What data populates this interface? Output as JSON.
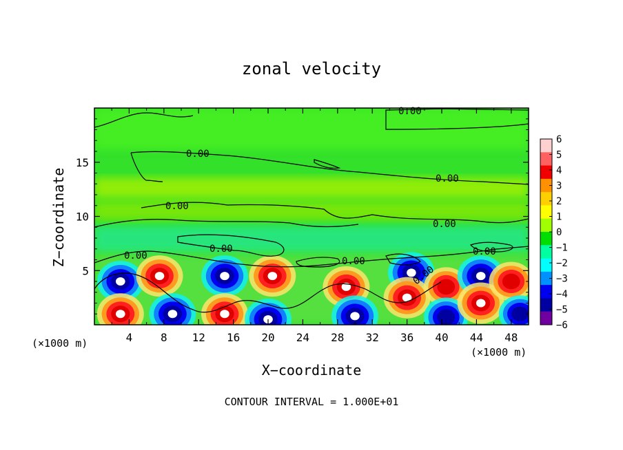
{
  "chart_data": {
    "type": "heatmap",
    "title": "zonal velocity",
    "xlabel": "X−coordinate",
    "ylabel": "Z−coordinate",
    "x_unit": "(×1000 m)",
    "xlim": [
      0,
      50
    ],
    "ylim": [
      0,
      20
    ],
    "x_ticks": [
      "4",
      "8",
      "12",
      "16",
      "20",
      "24",
      "28",
      "32",
      "36",
      "40",
      "44",
      "48"
    ],
    "y_ticks": [
      "5",
      "10",
      "15"
    ],
    "colorbar_ticks": [
      "6",
      "5",
      "4",
      "3",
      "2",
      "1",
      "0",
      "−1",
      "−2",
      "−3",
      "−4",
      "−5",
      "−6"
    ],
    "colorbar_range": [
      -6,
      6
    ],
    "colorbar_colors": [
      "#ffd0d0",
      "#ff6060",
      "#f00000",
      "#ff9000",
      "#ffd000",
      "#ffff00",
      "#a0ff00",
      "#00dd00",
      "#00ffa0",
      "#00ffff",
      "#0090ff",
      "#0000f0",
      "#0000a0",
      "#7000a0"
    ],
    "contour_label": "0.00",
    "contour_interval_text": "CONTOUR INTERVAL = 1.000E+01",
    "cells": [
      {
        "x": 3,
        "z": 4.0,
        "v": -6
      },
      {
        "x": 3,
        "z": 1.0,
        "v": 6
      },
      {
        "x": 7.5,
        "z": 4.5,
        "v": 6
      },
      {
        "x": 9,
        "z": 1.0,
        "v": -6
      },
      {
        "x": 15,
        "z": 4.5,
        "v": -6
      },
      {
        "x": 15,
        "z": 1.0,
        "v": 6
      },
      {
        "x": 20.5,
        "z": 4.5,
        "v": 6
      },
      {
        "x": 20,
        "z": 0.5,
        "v": -6
      },
      {
        "x": 29,
        "z": 3.5,
        "v": 6
      },
      {
        "x": 30,
        "z": 0.8,
        "v": -6
      },
      {
        "x": 36.5,
        "z": 4.8,
        "v": -6
      },
      {
        "x": 36,
        "z": 2.5,
        "v": 6
      },
      {
        "x": 40.5,
        "z": 3.5,
        "v": 5
      },
      {
        "x": 40.5,
        "z": 0.7,
        "v": -5
      },
      {
        "x": 44.5,
        "z": 4.5,
        "v": -6
      },
      {
        "x": 44.5,
        "z": 2.0,
        "v": 6
      },
      {
        "x": 48,
        "z": 4.0,
        "v": 5
      },
      {
        "x": 49,
        "z": 1.0,
        "v": -4
      }
    ]
  }
}
